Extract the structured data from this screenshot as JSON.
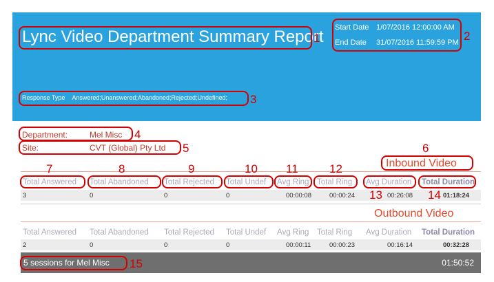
{
  "report": {
    "title": "Lync Video Department Summary Report",
    "start_label": "Start Date",
    "start_value": "1/07/2016 12:00:00 AM",
    "end_label": "End Date",
    "end_value": "31/07/2016 11:59:59 PM",
    "response_label": "Response Type",
    "response_value": "Answered;Unanswered;Abandoned;Rejected;Undefined;"
  },
  "info": {
    "department_label": "Department:",
    "department_value": "Mel Misc",
    "site_label": "Site:",
    "site_value": "CVT (Global) Pty Ltd"
  },
  "inbound": {
    "title": "Inbound Video",
    "headers": [
      "Total Answered",
      "Total Abandoned",
      "Total Rejected",
      "Total Undef",
      "Avg Ring",
      "Total Ring",
      "Avg Duration",
      "Total Duration"
    ],
    "values": [
      "3",
      "0",
      "0",
      "0",
      "00:00:08",
      "00:00:24",
      "00:26:08",
      "01:18:24"
    ]
  },
  "outbound": {
    "title": "Outbound Video",
    "headers": [
      "Total Answered",
      "Total Abandoned",
      "Total Rejected",
      "Total Undef",
      "Avg Ring",
      "Total Ring",
      "Avg Duration",
      "Total Duration"
    ],
    "values": [
      "2",
      "0",
      "0",
      "0",
      "00:00:11",
      "00:00:23",
      "00:16:14",
      "00:32:28"
    ]
  },
  "footer": {
    "sessions_text": "5  sessions for Mel Misc",
    "total": "01:50:52"
  },
  "annotations": [
    "1",
    "2",
    "3",
    "4",
    "5",
    "6",
    "7",
    "8",
    "9",
    "10",
    "11",
    "12",
    "13",
    "14",
    "15"
  ],
  "colors": {
    "banner": "#2aa2dd",
    "annotation": "#d40000",
    "accent": "#e04a2a",
    "footer": "#6f6f6f"
  }
}
